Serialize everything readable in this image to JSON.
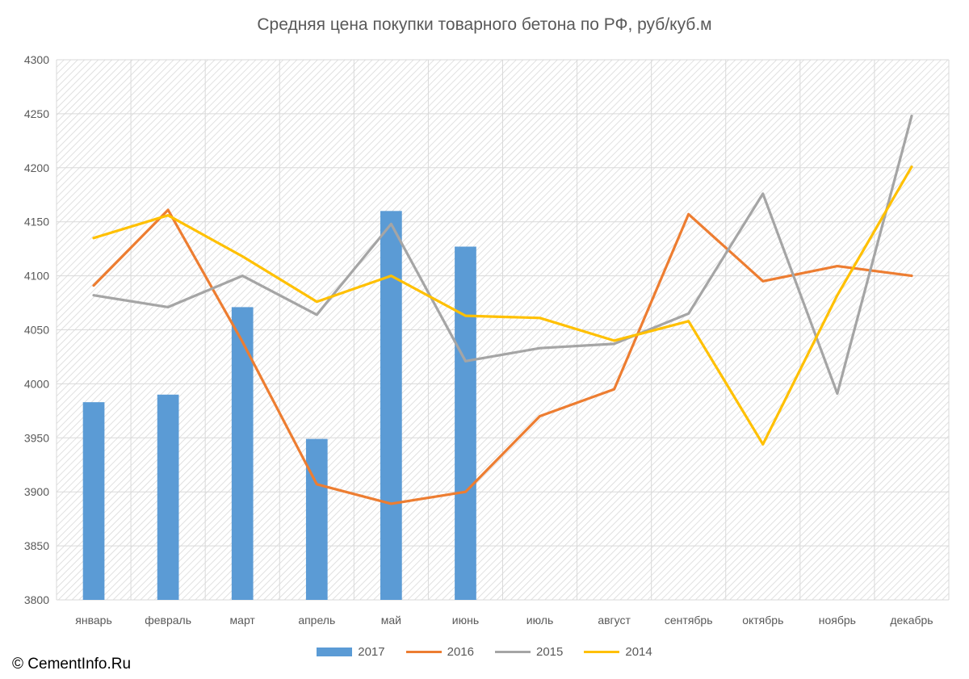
{
  "chart_data": {
    "type": "bar",
    "title": "Средняя цена покупки товарного бетона по РФ, руб/куб.м",
    "categories": [
      "январь",
      "февраль",
      "март",
      "апрель",
      "май",
      "июнь",
      "июль",
      "август",
      "сентябрь",
      "октябрь",
      "ноябрь",
      "декабрь"
    ],
    "ylim": [
      3800,
      4300
    ],
    "yticks": [
      3800,
      3850,
      3900,
      3950,
      4000,
      4050,
      4100,
      4150,
      4200,
      4250,
      4300
    ],
    "ytick_labels": [
      "3800",
      "3850",
      "3900",
      "3950",
      "4000",
      "4050",
      "4100",
      "4150",
      "4200",
      "4250",
      "4300"
    ],
    "grid": true,
    "legend_position": "bottom",
    "series": [
      {
        "name": "2017",
        "kind": "bar",
        "color": "#5B9BD5",
        "values": [
          3983,
          3990,
          4071,
          3949,
          4160,
          4127,
          null,
          null,
          null,
          null,
          null,
          null
        ]
      },
      {
        "name": "2016",
        "kind": "line",
        "color": "#ED7D31",
        "values": [
          4091,
          4161,
          4039,
          3907,
          3889,
          3900,
          3970,
          3995,
          4157,
          4095,
          4109,
          4100
        ]
      },
      {
        "name": "2015",
        "kind": "line",
        "color": "#A5A5A5",
        "values": [
          4082,
          4071,
          4100,
          4064,
          4148,
          4021,
          4033,
          4037,
          4065,
          4176,
          3991,
          4248
        ]
      },
      {
        "name": "2014",
        "kind": "line",
        "color": "#FFC000",
        "values": [
          4135,
          4156,
          4118,
          4076,
          4100,
          4063,
          4061,
          4040,
          4058,
          3944,
          4082,
          4201
        ]
      }
    ]
  },
  "copyright": "© CementInfo.Ru"
}
